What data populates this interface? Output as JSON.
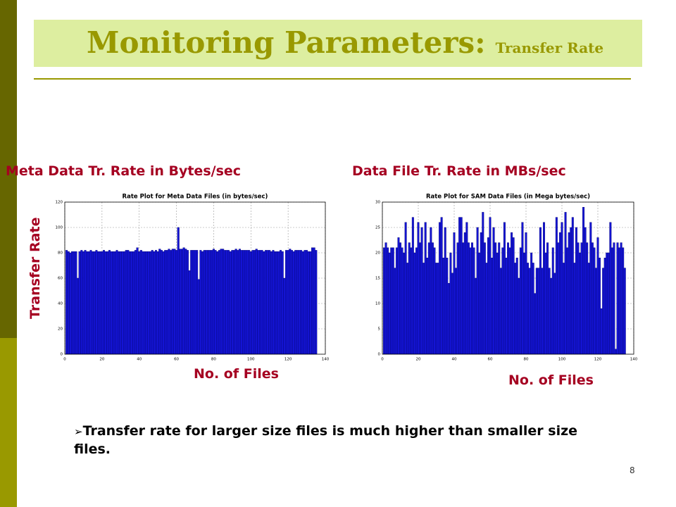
{
  "slide": {
    "title": "Monitoring Parameters:",
    "subtitle": "Transfer Rate",
    "left_heading": "Meta Data Tr. Rate in Bytes/sec",
    "right_heading": "Data File Tr. Rate in MBs/sec",
    "y_heading": "Transfer Rate",
    "left_x_heading": "No. of Files",
    "right_x_heading": "No. of Files",
    "bullet": "Transfer rate for larger size files is much higher than smaller size files.",
    "page_number": "8"
  },
  "chart_data": [
    {
      "type": "bar",
      "title": "Rate Plot for  Meta Data Files (in bytes/sec)",
      "color": "#1414d4",
      "grid": true,
      "xlim": [
        0,
        140
      ],
      "xticks": [
        0,
        20,
        40,
        60,
        80,
        100,
        120,
        140
      ],
      "ylim": [
        0,
        120
      ],
      "yticks": [
        0,
        20,
        40,
        60,
        80,
        100,
        120
      ],
      "x": [
        1,
        2,
        3,
        4,
        5,
        6,
        7,
        8,
        9,
        10,
        11,
        12,
        13,
        14,
        15,
        16,
        17,
        18,
        19,
        20,
        21,
        22,
        23,
        24,
        25,
        26,
        27,
        28,
        29,
        30,
        31,
        32,
        33,
        34,
        35,
        36,
        37,
        38,
        39,
        40,
        41,
        42,
        43,
        44,
        45,
        46,
        47,
        48,
        49,
        50,
        51,
        52,
        53,
        54,
        55,
        56,
        57,
        58,
        59,
        60,
        61,
        62,
        63,
        64,
        65,
        66,
        67,
        68,
        69,
        70,
        71,
        72,
        73,
        74,
        75,
        76,
        77,
        78,
        79,
        80,
        81,
        82,
        83,
        84,
        85,
        86,
        87,
        88,
        89,
        90,
        91,
        92,
        93,
        94,
        95,
        96,
        97,
        98,
        99,
        100,
        101,
        102,
        103,
        104,
        105,
        106,
        107,
        108,
        109,
        110,
        111,
        112,
        113,
        114,
        115,
        116,
        117,
        118,
        119,
        120,
        121,
        122,
        123,
        124,
        125,
        126,
        127,
        128,
        129,
        130,
        131,
        132,
        133,
        134,
        135
      ],
      "values": [
        82,
        81,
        80,
        81,
        81,
        81,
        60,
        81,
        82,
        81,
        82,
        81,
        81,
        82,
        81,
        81,
        82,
        81,
        81,
        81,
        82,
        81,
        81,
        82,
        81,
        81,
        81,
        82,
        81,
        81,
        81,
        81,
        82,
        82,
        81,
        81,
        81,
        82,
        84,
        81,
        82,
        81,
        81,
        81,
        81,
        81,
        82,
        81,
        82,
        81,
        83,
        82,
        81,
        82,
        82,
        83,
        82,
        83,
        83,
        82,
        100,
        83,
        83,
        84,
        83,
        82,
        66,
        82,
        82,
        82,
        82,
        59,
        82,
        81,
        82,
        82,
        82,
        82,
        82,
        83,
        82,
        81,
        82,
        83,
        83,
        82,
        82,
        82,
        81,
        82,
        82,
        83,
        82,
        83,
        82,
        82,
        82,
        82,
        82,
        81,
        82,
        82,
        83,
        82,
        82,
        82,
        81,
        82,
        82,
        82,
        81,
        82,
        81,
        81,
        81,
        82,
        81,
        60,
        82,
        82,
        83,
        82,
        81,
        82,
        82,
        82,
        82,
        81,
        82,
        82,
        81,
        81,
        84,
        84,
        82
      ]
    },
    {
      "type": "bar",
      "title": "Rate Plot for  SAM Data Files (in Mega bytes/sec)",
      "color": "#1414d4",
      "grid": true,
      "xlim": [
        0,
        140
      ],
      "xticks": [
        0,
        20,
        40,
        60,
        80,
        100,
        120,
        140
      ],
      "ylim": [
        0,
        30
      ],
      "yticks": [
        0,
        5,
        10,
        15,
        20,
        25,
        30
      ],
      "x": [
        1,
        2,
        3,
        4,
        5,
        6,
        7,
        8,
        9,
        10,
        11,
        12,
        13,
        14,
        15,
        16,
        17,
        18,
        19,
        20,
        21,
        22,
        23,
        24,
        25,
        26,
        27,
        28,
        29,
        30,
        31,
        32,
        33,
        34,
        35,
        36,
        37,
        38,
        39,
        40,
        41,
        42,
        43,
        44,
        45,
        46,
        47,
        48,
        49,
        50,
        51,
        52,
        53,
        54,
        55,
        56,
        57,
        58,
        59,
        60,
        61,
        62,
        63,
        64,
        65,
        66,
        67,
        68,
        69,
        70,
        71,
        72,
        73,
        74,
        75,
        76,
        77,
        78,
        79,
        80,
        81,
        82,
        83,
        84,
        85,
        86,
        87,
        88,
        89,
        90,
        91,
        92,
        93,
        94,
        95,
        96,
        97,
        98,
        99,
        100,
        101,
        102,
        103,
        104,
        105,
        106,
        107,
        108,
        109,
        110,
        111,
        112,
        113,
        114,
        115,
        116,
        117,
        118,
        119,
        120,
        121,
        122,
        123,
        124,
        125,
        126,
        127,
        128,
        129,
        130,
        131,
        132,
        133,
        134,
        135
      ],
      "values": [
        21,
        22,
        21,
        20,
        21,
        21,
        17,
        21,
        23,
        22,
        21,
        20,
        26,
        18,
        22,
        21,
        27,
        20,
        21,
        26,
        22,
        25,
        18,
        26,
        19,
        22,
        25,
        22,
        21,
        18,
        18,
        26,
        27,
        19,
        25,
        19,
        14,
        20,
        16,
        24,
        17,
        22,
        27,
        27,
        22,
        24,
        26,
        22,
        21,
        22,
        21,
        15,
        25,
        20,
        24,
        28,
        22,
        18,
        23,
        27,
        19,
        25,
        22,
        20,
        22,
        17,
        21,
        26,
        19,
        22,
        21,
        24,
        23,
        18,
        19,
        15,
        21,
        26,
        20,
        24,
        18,
        17,
        20,
        18,
        12,
        17,
        17,
        25,
        17,
        26,
        20,
        22,
        17,
        15,
        21,
        16,
        27,
        22,
        24,
        26,
        18,
        28,
        21,
        24,
        25,
        27,
        18,
        25,
        22,
        20,
        22,
        29,
        25,
        22,
        18,
        26,
        22,
        21,
        17,
        23,
        19,
        9,
        17,
        19,
        20,
        20,
        26,
        21,
        22,
        1,
        22,
        21,
        22,
        21,
        17
      ]
    }
  ]
}
